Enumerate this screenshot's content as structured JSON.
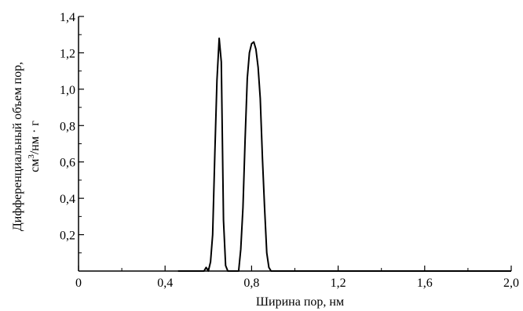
{
  "chart_data": {
    "type": "line",
    "title": "",
    "xlabel": "Ширина пор, нм",
    "ylabel_line1": "Дифференциальный объем пор,",
    "ylabel_line2_prefix": "см",
    "ylabel_line2_sup": "3",
    "ylabel_line2_suffix": "/нм · г",
    "xlim": [
      0,
      2.0
    ],
    "ylim": [
      0,
      1.4
    ],
    "x_ticks": [
      0,
      0.4,
      0.8,
      1.2,
      1.6,
      2.0
    ],
    "x_tick_labels": [
      "0",
      "0,4",
      "0,8",
      "1,2",
      "1,6",
      "2,0"
    ],
    "x_minor_ticks": [
      0.2,
      0.6,
      1.0,
      1.4,
      1.8
    ],
    "y_ticks": [
      0.2,
      0.4,
      0.6,
      0.8,
      1.0,
      1.2,
      1.4
    ],
    "y_tick_labels": [
      "0,2",
      "0,4",
      "0,6",
      "0,8",
      "1,0",
      "1,2",
      "1,4"
    ],
    "y_minor_ticks": [
      0.1,
      0.3,
      0.5,
      0.7,
      0.9,
      1.1,
      1.3
    ],
    "grid": false,
    "series": [
      {
        "color": "#000000",
        "x": [
          0.46,
          0.58,
          0.59,
          0.6,
          0.61,
          0.62,
          0.63,
          0.64,
          0.65,
          0.66,
          0.67,
          0.68,
          0.69,
          0.7,
          0.74,
          0.75,
          0.76,
          0.77,
          0.78,
          0.79,
          0.8,
          0.81,
          0.82,
          0.83,
          0.84,
          0.85,
          0.86,
          0.87,
          0.88,
          0.89,
          0.9,
          0.95,
          2.0
        ],
        "y": [
          0,
          0,
          0.02,
          0.0,
          0.05,
          0.2,
          0.65,
          1.05,
          1.28,
          1.15,
          0.28,
          0.03,
          0.0,
          0,
          0,
          0.12,
          0.35,
          0.72,
          1.06,
          1.2,
          1.25,
          1.26,
          1.22,
          1.12,
          0.95,
          0.62,
          0.35,
          0.1,
          0.02,
          0,
          0,
          0,
          0
        ]
      }
    ]
  }
}
